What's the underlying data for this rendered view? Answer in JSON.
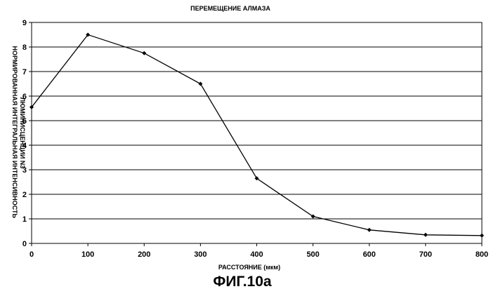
{
  "chart_data": {
    "type": "line",
    "title": "ПЕРЕМЕЩЕНИЕ АЛМАЗА",
    "xlabel": "РАССТОЯНИЕ (мкм)",
    "ylabel": "НОРМИРОВАННАЯ ИНТЕГРАЛЬНАЯ ИНТЕНСИВНОСТЬ ЛЮМИНИСЦЕНЦИИ N3",
    "ylabel_lines": [
      "НОРМИРОВАННАЯ ИНТЕГРАЛЬНАЯ ИНТЕНСИВНОСТЬ",
      "ЛЮМИНИСЦЕНЦИИ N3"
    ],
    "xlim": [
      0,
      800
    ],
    "ylim": [
      0,
      9
    ],
    "x_ticks": [
      0,
      100,
      200,
      300,
      400,
      500,
      600,
      700,
      800
    ],
    "y_ticks": [
      0,
      1,
      2,
      3,
      4,
      5,
      6,
      7,
      8,
      9
    ],
    "grid": "horizontal",
    "legend": "none",
    "series": [
      {
        "x": [
          0,
          100,
          200,
          300,
          400,
          500,
          600,
          700,
          800
        ],
        "values": [
          5.55,
          8.5,
          7.75,
          6.5,
          2.65,
          1.1,
          0.55,
          0.35,
          0.32
        ]
      }
    ],
    "caption": "ФИГ.10a",
    "colors": {
      "line": "#000000",
      "grid": "#000000",
      "background": "#ffffff"
    }
  }
}
